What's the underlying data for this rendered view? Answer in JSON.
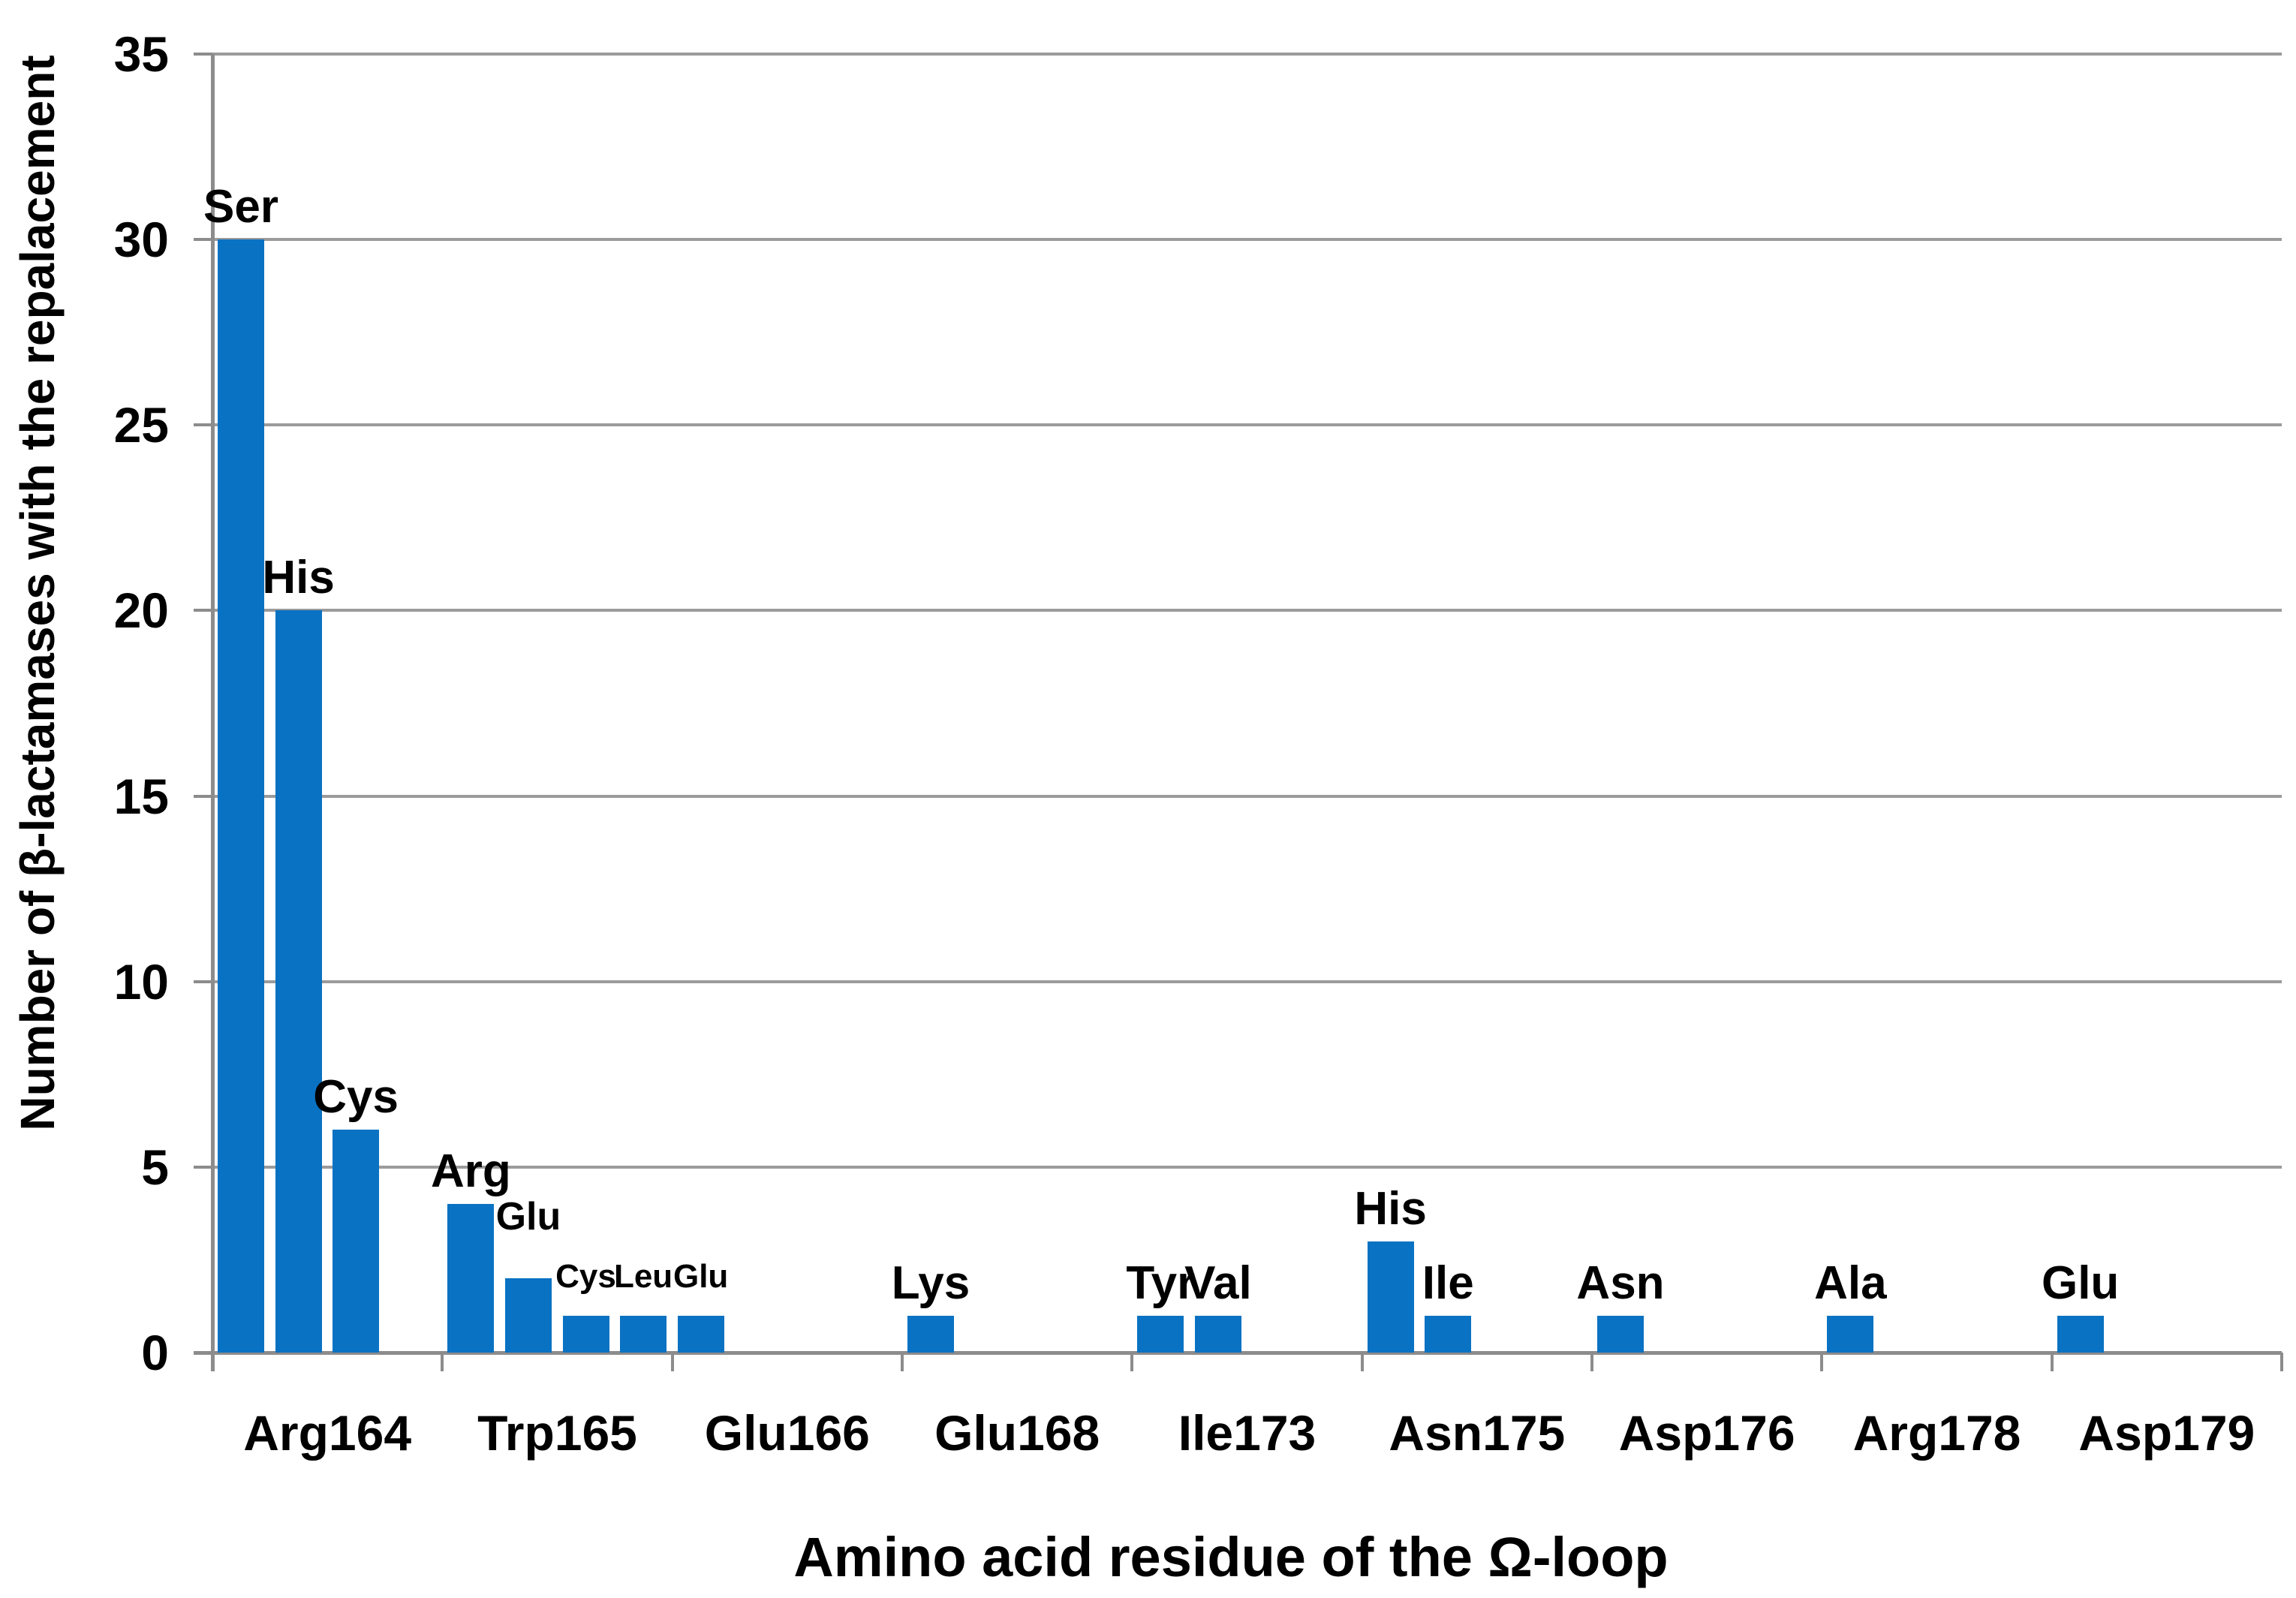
{
  "chart_data": {
    "type": "bar",
    "title": "",
    "xlabel": "Amino acid residue of the Ω-loop",
    "ylabel": "Number of β-lactamases with the repalacement",
    "ylim": [
      0,
      35
    ],
    "yticks": [
      0,
      5,
      10,
      15,
      20,
      25,
      30,
      35
    ],
    "grid": true,
    "legend": false,
    "colors": {
      "bar": "#0A72C2",
      "gridline": "#9B9B9B",
      "axis": "#8C8C8C",
      "text": "#000000",
      "background": "#FFFFFF"
    },
    "slots_per_group": 4,
    "categories": [
      "Arg164",
      "Trp165",
      "Glu166",
      "Glu168",
      "Ile173",
      "Asn175",
      "Asp176",
      "Arg178",
      "Asp179"
    ],
    "groups": [
      {
        "category": "Arg164",
        "bars": [
          {
            "label": "Ser",
            "value": 30,
            "label_style": "large"
          },
          {
            "label": "His",
            "value": 20,
            "label_style": "large"
          },
          {
            "label": "Cys",
            "value": 6,
            "label_style": "large"
          }
        ]
      },
      {
        "category": "Trp165",
        "bars": [
          {
            "label": "Arg",
            "value": 4,
            "label_style": "large"
          },
          {
            "label": "Glu",
            "value": 2,
            "label_style": "medium-raised"
          },
          {
            "label": "Cys",
            "value": 1,
            "label_style": "small"
          },
          {
            "label": "Leu",
            "value": 1,
            "label_style": "small"
          }
        ]
      },
      {
        "category": "Glu166",
        "bars": [
          {
            "label": "Glu",
            "value": 1,
            "label_style": "small"
          }
        ]
      },
      {
        "category": "Glu168",
        "bars": [
          {
            "label": "Lys",
            "value": 1,
            "label_style": "large"
          }
        ]
      },
      {
        "category": "Ile173",
        "bars": [
          {
            "label": "Tyr",
            "value": 1,
            "label_style": "large"
          },
          {
            "label": "Val",
            "value": 1,
            "label_style": "large"
          }
        ]
      },
      {
        "category": "Asn175",
        "bars": [
          {
            "label": "His",
            "value": 3,
            "label_style": "large"
          },
          {
            "label": "Ile",
            "value": 1,
            "label_style": "large"
          }
        ]
      },
      {
        "category": "Asp176",
        "bars": [
          {
            "label": "Asn",
            "value": 1,
            "label_style": "large"
          }
        ]
      },
      {
        "category": "Arg178",
        "bars": [
          {
            "label": "Ala",
            "value": 1,
            "label_style": "large"
          }
        ]
      },
      {
        "category": "Asp179",
        "bars": [
          {
            "label": "Glu",
            "value": 1,
            "label_style": "large"
          }
        ]
      }
    ]
  }
}
